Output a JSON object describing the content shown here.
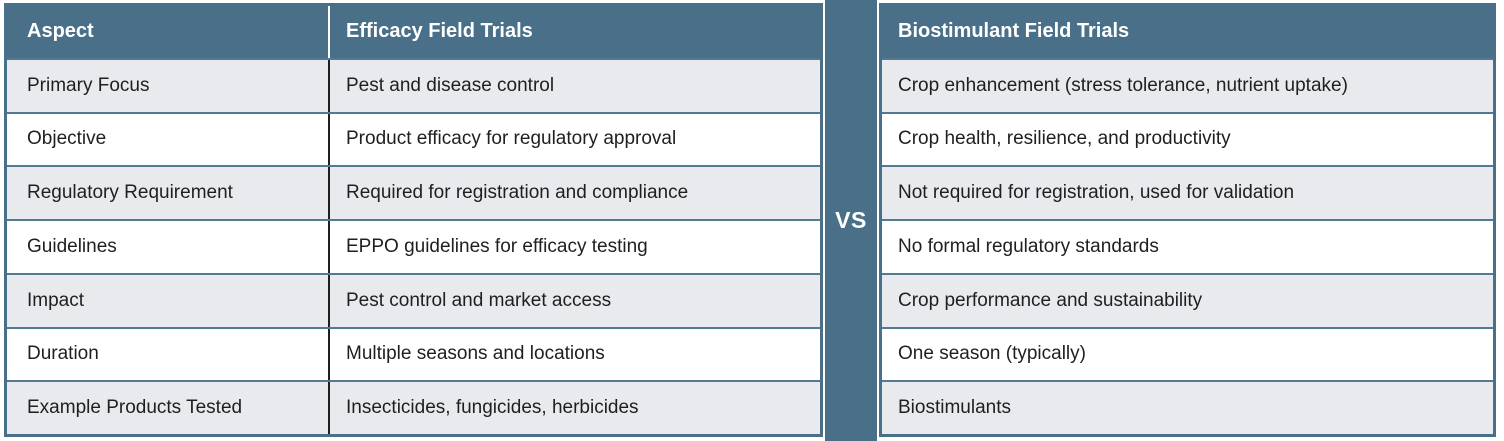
{
  "vs_label": "VS",
  "colors": {
    "header_bg": "#4a7089",
    "vs_strip_bg": "#4a7089",
    "row_alt_bg": "#e9eaee",
    "row_bg": "#ffffff",
    "row_separator": "#527a92",
    "column_divider_dark": "#1f1f1f",
    "header_text": "#ffffff",
    "body_text": "#1f1f1f",
    "outer_border": "#4a7089"
  },
  "left_table": {
    "aspect_header": "Aspect",
    "value_header": "Efficacy Field Trials"
  },
  "right_table": {
    "value_header": "Biostimulant Field Trials"
  },
  "rows": [
    {
      "aspect": "Primary Focus",
      "efficacy": "Pest and disease control",
      "biostimulant": "Crop enhancement (stress tolerance, nutrient uptake)"
    },
    {
      "aspect": "Objective",
      "efficacy": "Product efficacy for regulatory approval",
      "biostimulant": "Crop health, resilience, and productivity"
    },
    {
      "aspect": "Regulatory Requirement",
      "efficacy": "Required for registration and compliance",
      "biostimulant": "Not required for registration, used for validation"
    },
    {
      "aspect": "Guidelines",
      "efficacy": "EPPO guidelines for efficacy testing",
      "biostimulant": "No formal regulatory standards"
    },
    {
      "aspect": "Impact",
      "efficacy": "Pest control and market access",
      "biostimulant": "Crop performance and sustainability"
    },
    {
      "aspect": "Duration",
      "efficacy": "Multiple seasons and locations",
      "biostimulant": "One season (typically)"
    },
    {
      "aspect": "Example Products Tested",
      "efficacy": "Insecticides, fungicides, herbicides",
      "biostimulant": "Biostimulants"
    }
  ]
}
